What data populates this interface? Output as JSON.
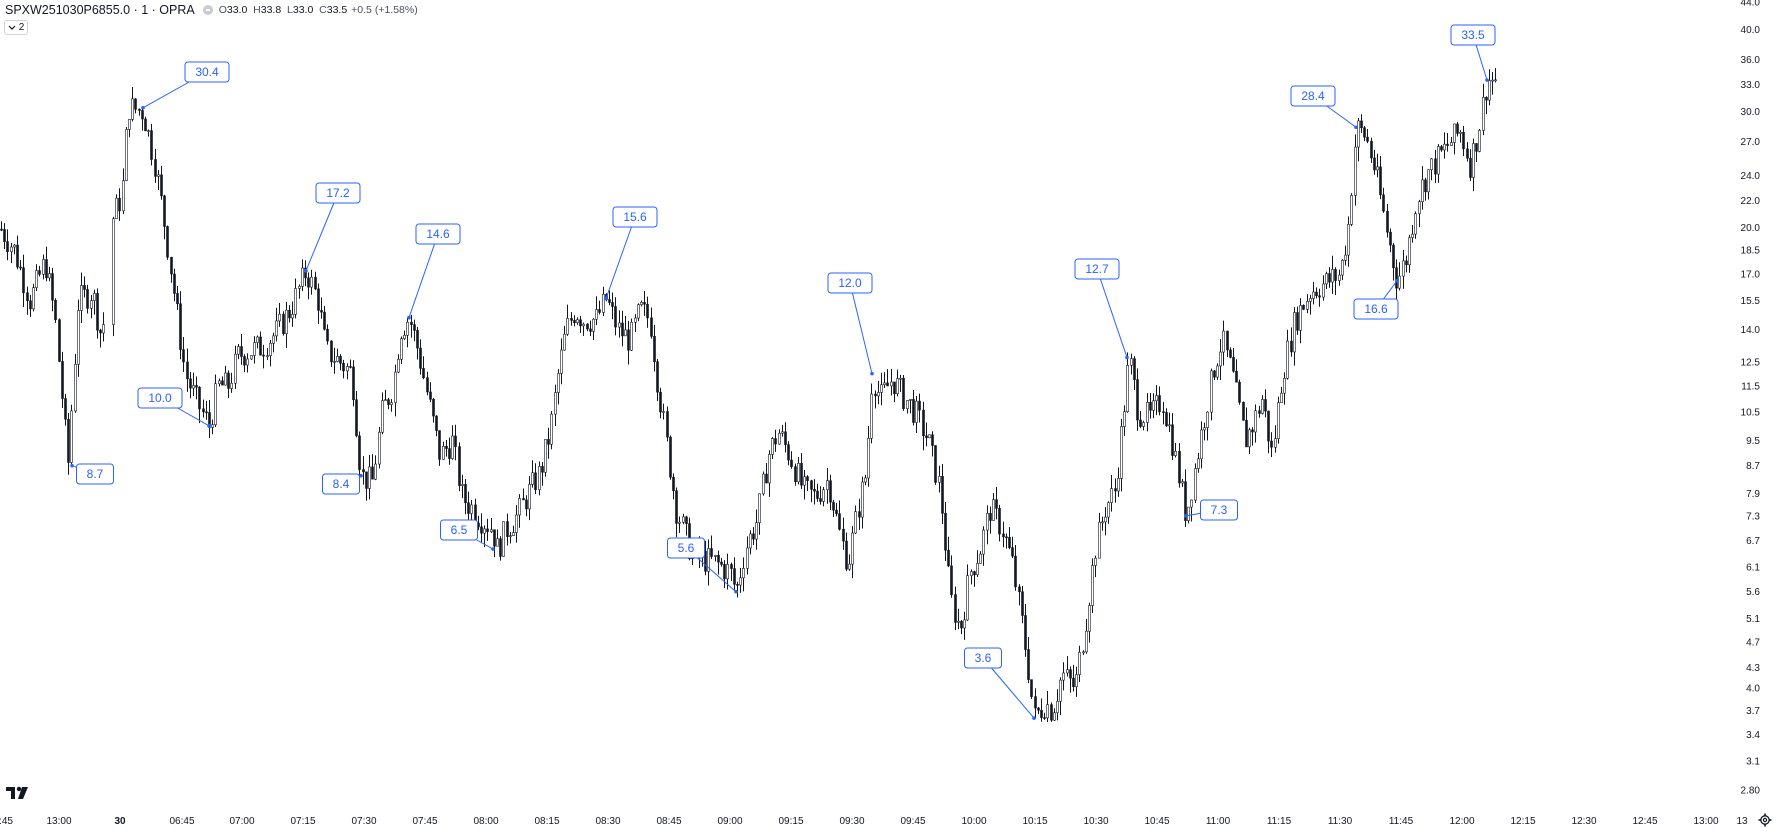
{
  "header": {
    "symbol": "SPXW251030P6855.0 · 1 · OPRA",
    "open_label": "O",
    "open": "33.0",
    "high_label": "H",
    "high": "33.8",
    "low_label": "L",
    "low": "33.0",
    "close_label": "C",
    "close": "33.5",
    "change": "+0.5 (+1.58%)",
    "indicator_toggle": "2"
  },
  "colors": {
    "candle": "#131722",
    "annotation": "#2962ff",
    "annotation_fill": "#ffffff"
  },
  "icons": {
    "logo": "tradingview-logo-icon",
    "settings": "gear-icon",
    "toggle": "chevron-down-icon"
  },
  "chart_data": {
    "type": "candlestick",
    "y_scale": "log",
    "y_range": [
      2.7,
      45.0
    ],
    "y_ticks": [
      "44.0",
      "40.0",
      "36.0",
      "33.0",
      "30.0",
      "27.0",
      "24.0",
      "22.0",
      "20.0",
      "18.5",
      "17.0",
      "15.5",
      "14.0",
      "12.5",
      "11.5",
      "10.5",
      "9.5",
      "8.7",
      "7.9",
      "7.3",
      "6.7",
      "6.1",
      "5.6",
      "5.1",
      "4.7",
      "4.3",
      "4.0",
      "3.7",
      "3.4",
      "3.1",
      "2.80"
    ],
    "x_ticks": [
      ":45",
      "13:00",
      "30",
      "06:45",
      "07:00",
      "07:15",
      "07:30",
      "07:45",
      "08:00",
      "08:15",
      "08:30",
      "08:45",
      "09:00",
      "09:15",
      "09:30",
      "09:45",
      "10:00",
      "10:15",
      "10:30",
      "10:45",
      "11:00",
      "11:15",
      "11:30",
      "11:45",
      "12:00",
      "12:15",
      "12:30",
      "12:45",
      "13:00",
      "13"
    ],
    "bold_x_tick": "30",
    "price_path": [
      [
        0,
        20.0
      ],
      [
        14,
        18.5
      ],
      [
        30,
        15.5
      ],
      [
        45,
        17.8
      ],
      [
        55,
        14.5
      ],
      [
        68,
        8.7
      ],
      [
        78,
        15.5
      ],
      [
        92,
        16.0
      ],
      [
        102,
        13.5
      ],
      [
        112,
        20.5
      ],
      [
        122,
        22.5
      ],
      [
        128,
        30.5
      ],
      [
        143,
        30.0
      ],
      [
        155,
        25.0
      ],
      [
        165,
        20.0
      ],
      [
        175,
        15.5
      ],
      [
        185,
        12.0
      ],
      [
        195,
        11.0
      ],
      [
        209,
        10.0
      ],
      [
        218,
        11.5
      ],
      [
        228,
        11.5
      ],
      [
        238,
        12.8
      ],
      [
        250,
        13.0
      ],
      [
        262,
        13.2
      ],
      [
        275,
        13.8
      ],
      [
        290,
        15.0
      ],
      [
        306,
        17.2
      ],
      [
        318,
        15.5
      ],
      [
        326,
        13.0
      ],
      [
        340,
        12.5
      ],
      [
        352,
        12.0
      ],
      [
        361,
        8.4
      ],
      [
        372,
        8.2
      ],
      [
        382,
        10.5
      ],
      [
        393,
        11.5
      ],
      [
        400,
        14.0
      ],
      [
        409,
        14.6
      ],
      [
        418,
        13.0
      ],
      [
        428,
        11.0
      ],
      [
        440,
        9.0
      ],
      [
        452,
        9.5
      ],
      [
        462,
        7.8
      ],
      [
        472,
        7.5
      ],
      [
        482,
        7.2
      ],
      [
        492,
        7.0
      ],
      [
        497,
        6.5
      ],
      [
        507,
        7.0
      ],
      [
        517,
        7.3
      ],
      [
        530,
        8.0
      ],
      [
        540,
        8.5
      ],
      [
        550,
        9.8
      ],
      [
        558,
        12.0
      ],
      [
        566,
        14.0
      ],
      [
        575,
        15.0
      ],
      [
        583,
        14.5
      ],
      [
        596,
        14.5
      ],
      [
        606,
        15.6
      ],
      [
        618,
        14.0
      ],
      [
        630,
        13.5
      ],
      [
        640,
        15.0
      ],
      [
        650,
        14.5
      ],
      [
        658,
        11.5
      ],
      [
        666,
        9.5
      ],
      [
        676,
        7.5
      ],
      [
        690,
        6.5
      ],
      [
        700,
        6.3
      ],
      [
        715,
        6.2
      ],
      [
        730,
        6.0
      ],
      [
        736,
        5.6
      ],
      [
        745,
        6.5
      ],
      [
        757,
        7.2
      ],
      [
        768,
        9.0
      ],
      [
        778,
        9.8
      ],
      [
        790,
        9.0
      ],
      [
        803,
        8.0
      ],
      [
        815,
        7.8
      ],
      [
        828,
        8.3
      ],
      [
        840,
        6.8
      ],
      [
        848,
        6.2
      ],
      [
        858,
        7.5
      ],
      [
        866,
        8.5
      ],
      [
        872,
        12.0
      ],
      [
        880,
        11.0
      ],
      [
        892,
        11.8
      ],
      [
        905,
        11.0
      ],
      [
        915,
        10.5
      ],
      [
        928,
        9.5
      ],
      [
        940,
        8.0
      ],
      [
        950,
        5.5
      ],
      [
        960,
        4.9
      ],
      [
        970,
        6.0
      ],
      [
        980,
        6.5
      ],
      [
        990,
        7.5
      ],
      [
        1002,
        7.0
      ],
      [
        1012,
        6.2
      ],
      [
        1022,
        5.0
      ],
      [
        1028,
        4.3
      ],
      [
        1034,
        3.6
      ],
      [
        1045,
        3.8
      ],
      [
        1052,
        3.7
      ],
      [
        1062,
        4.2
      ],
      [
        1075,
        4.0
      ],
      [
        1085,
        5.0
      ],
      [
        1095,
        6.5
      ],
      [
        1105,
        7.5
      ],
      [
        1115,
        8.0
      ],
      [
        1122,
        10.0
      ],
      [
        1129,
        12.7
      ],
      [
        1138,
        10.5
      ],
      [
        1150,
        10.3
      ],
      [
        1162,
        11.0
      ],
      [
        1172,
        9.5
      ],
      [
        1186,
        7.3
      ],
      [
        1194,
        8.5
      ],
      [
        1205,
        10.5
      ],
      [
        1215,
        12.5
      ],
      [
        1222,
        13.5
      ],
      [
        1232,
        12.0
      ],
      [
        1245,
        9.5
      ],
      [
        1252,
        10.0
      ],
      [
        1262,
        11.0
      ],
      [
        1272,
        9.0
      ],
      [
        1282,
        12.0
      ],
      [
        1295,
        14.5
      ],
      [
        1310,
        16.0
      ],
      [
        1325,
        16.5
      ],
      [
        1340,
        17.0
      ],
      [
        1348,
        20.0
      ],
      [
        1356,
        28.4
      ],
      [
        1366,
        27.5
      ],
      [
        1376,
        24.0
      ],
      [
        1386,
        20.0
      ],
      [
        1397,
        16.6
      ],
      [
        1406,
        18.0
      ],
      [
        1416,
        22.0
      ],
      [
        1426,
        24.0
      ],
      [
        1438,
        25.5
      ],
      [
        1450,
        27.0
      ],
      [
        1460,
        28.0
      ],
      [
        1470,
        25.0
      ],
      [
        1478,
        28.0
      ],
      [
        1487,
        33.5
      ],
      [
        1497,
        33.5
      ]
    ],
    "annotations": [
      {
        "label": "8.7",
        "value": 8.7
      },
      {
        "label": "30.4",
        "value": 30.4
      },
      {
        "label": "10.0",
        "value": 10.0
      },
      {
        "label": "17.2",
        "value": 17.2
      },
      {
        "label": "8.4",
        "value": 8.4
      },
      {
        "label": "14.6",
        "value": 14.6
      },
      {
        "label": "6.5",
        "value": 6.5
      },
      {
        "label": "15.6",
        "value": 15.6
      },
      {
        "label": "5.6",
        "value": 5.6
      },
      {
        "label": "12.0",
        "value": 12.0
      },
      {
        "label": "3.6",
        "value": 3.6
      },
      {
        "label": "12.7",
        "value": 12.7
      },
      {
        "label": "7.3",
        "value": 7.3
      },
      {
        "label": "28.4",
        "value": 28.4
      },
      {
        "label": "16.6",
        "value": 16.6
      },
      {
        "label": "33.5",
        "value": 33.5
      }
    ]
  }
}
